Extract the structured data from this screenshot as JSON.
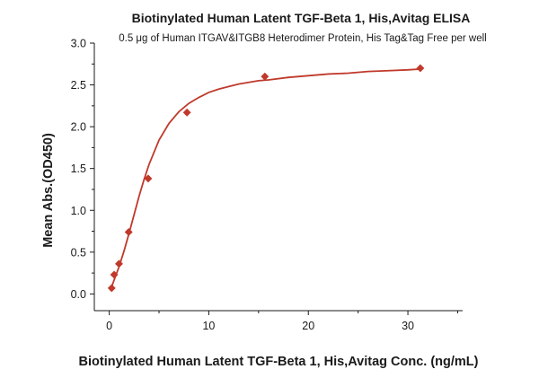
{
  "chart_data": {
    "type": "scatter",
    "title": "Biotinylated Human Latent TGF-Beta 1, His,Avitag ELISA",
    "subtitle": "0.5 μg of Human ITGAV&ITGB8 Heterodimer Protein, His Tag&Tag Free per well",
    "xlabel": "Biotinylated Human Latent TGF-Beta 1, His,Avitag Conc. (ng/mL)",
    "ylabel": "Mean Abs.(OD450)",
    "xlim": [
      -1.5,
      35.5
    ],
    "ylim": [
      -0.2,
      3.0
    ],
    "xticks": [
      0,
      10,
      20,
      30
    ],
    "yticks": [
      0.0,
      0.5,
      1.0,
      1.5,
      2.0,
      2.5,
      3.0
    ],
    "xtick_labels": [
      "0",
      "10",
      "20",
      "30"
    ],
    "ytick_labels": [
      "0.0",
      "0.5",
      "1.0",
      "1.5",
      "2.0",
      "2.5",
      "3.0"
    ],
    "grid": false,
    "legend": "none",
    "marker": "diamond",
    "color": "#c0392b",
    "series": [
      {
        "x": [
          0.24,
          0.49,
          0.98,
          1.95,
          3.91,
          7.81,
          15.63,
          31.25
        ],
        "y": [
          0.07,
          0.23,
          0.36,
          0.74,
          1.38,
          2.17,
          2.6,
          2.7
        ]
      }
    ],
    "fit_curve": {
      "x": [
        0.1,
        0.5,
        1,
        1.5,
        2,
        2.5,
        3,
        3.5,
        4,
        5,
        6,
        7,
        8,
        9,
        10,
        11,
        12,
        13,
        14,
        15,
        16,
        18,
        20,
        22,
        24,
        26,
        28,
        30,
        31.3
      ],
      "y": [
        0.04,
        0.17,
        0.33,
        0.52,
        0.73,
        0.95,
        1.17,
        1.37,
        1.55,
        1.84,
        2.04,
        2.18,
        2.28,
        2.35,
        2.41,
        2.45,
        2.48,
        2.51,
        2.53,
        2.55,
        2.56,
        2.59,
        2.61,
        2.63,
        2.64,
        2.66,
        2.67,
        2.68,
        2.69
      ]
    }
  }
}
